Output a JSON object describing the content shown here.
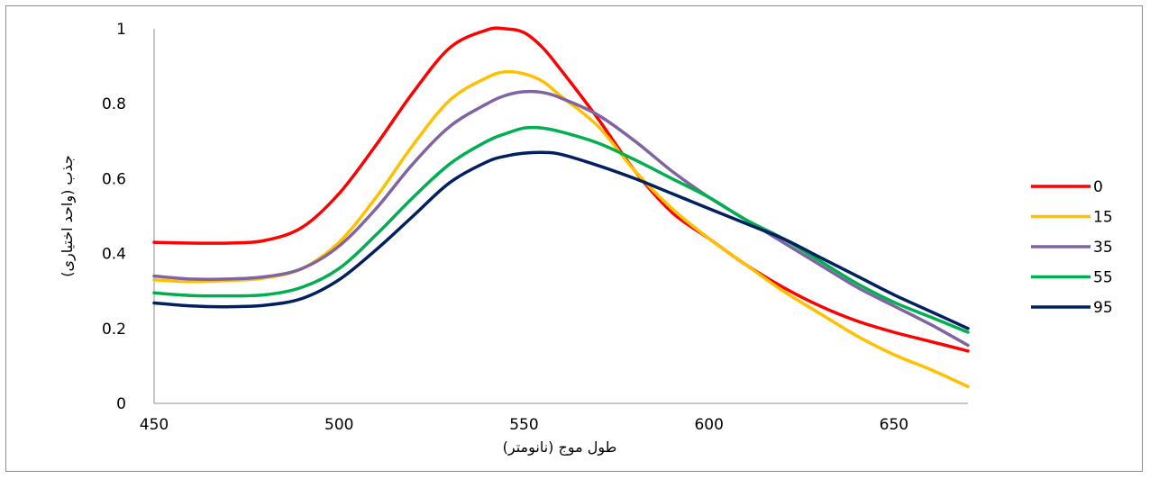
{
  "chart_data": {
    "type": "line",
    "title": "",
    "xlabel": "طول موج (نانومتر)",
    "ylabel": "جذب (واحد اختیاری)",
    "xlim": [
      450,
      670
    ],
    "ylim": [
      0,
      1
    ],
    "xticks": [
      450,
      500,
      550,
      600,
      650
    ],
    "yticks": [
      0,
      0.2,
      0.4,
      0.6,
      0.8,
      1
    ],
    "ytick_labels": [
      "0",
      "0.2",
      "0.4",
      "0.6",
      "0.8",
      "1"
    ],
    "grid": false,
    "legend_position": "right",
    "x": [
      450,
      460,
      470,
      480,
      490,
      500,
      510,
      520,
      530,
      540,
      545,
      550,
      555,
      560,
      570,
      580,
      590,
      600,
      610,
      620,
      630,
      640,
      650,
      660,
      670
    ],
    "series": [
      {
        "name": "0",
        "color": "#ff0000",
        "values": [
          0.43,
          0.428,
          0.428,
          0.435,
          0.47,
          0.56,
          0.69,
          0.83,
          0.95,
          0.997,
          1.0,
          0.99,
          0.95,
          0.89,
          0.76,
          0.62,
          0.51,
          0.44,
          0.37,
          0.31,
          0.26,
          0.22,
          0.19,
          0.165,
          0.14
        ]
      },
      {
        "name": "15",
        "color": "#ffc000",
        "values": [
          0.33,
          0.325,
          0.328,
          0.335,
          0.36,
          0.43,
          0.55,
          0.69,
          0.81,
          0.87,
          0.885,
          0.88,
          0.86,
          0.82,
          0.74,
          0.62,
          0.52,
          0.44,
          0.37,
          0.3,
          0.24,
          0.18,
          0.13,
          0.09,
          0.045
        ]
      },
      {
        "name": "35",
        "color": "#8064a2",
        "values": [
          0.34,
          0.332,
          0.332,
          0.338,
          0.36,
          0.42,
          0.52,
          0.64,
          0.74,
          0.8,
          0.822,
          0.832,
          0.83,
          0.815,
          0.77,
          0.7,
          0.62,
          0.55,
          0.49,
          0.43,
          0.37,
          0.31,
          0.26,
          0.21,
          0.155
        ]
      },
      {
        "name": "55",
        "color": "#00b050",
        "values": [
          0.295,
          0.288,
          0.287,
          0.29,
          0.31,
          0.36,
          0.45,
          0.55,
          0.64,
          0.7,
          0.72,
          0.735,
          0.735,
          0.725,
          0.695,
          0.65,
          0.6,
          0.55,
          0.49,
          0.44,
          0.38,
          0.32,
          0.27,
          0.23,
          0.19
        ]
      },
      {
        "name": "95",
        "color": "#002060",
        "values": [
          0.268,
          0.26,
          0.258,
          0.262,
          0.28,
          0.33,
          0.41,
          0.5,
          0.59,
          0.645,
          0.66,
          0.668,
          0.67,
          0.665,
          0.635,
          0.6,
          0.56,
          0.52,
          0.48,
          0.44,
          0.39,
          0.34,
          0.29,
          0.245,
          0.2
        ]
      }
    ]
  }
}
